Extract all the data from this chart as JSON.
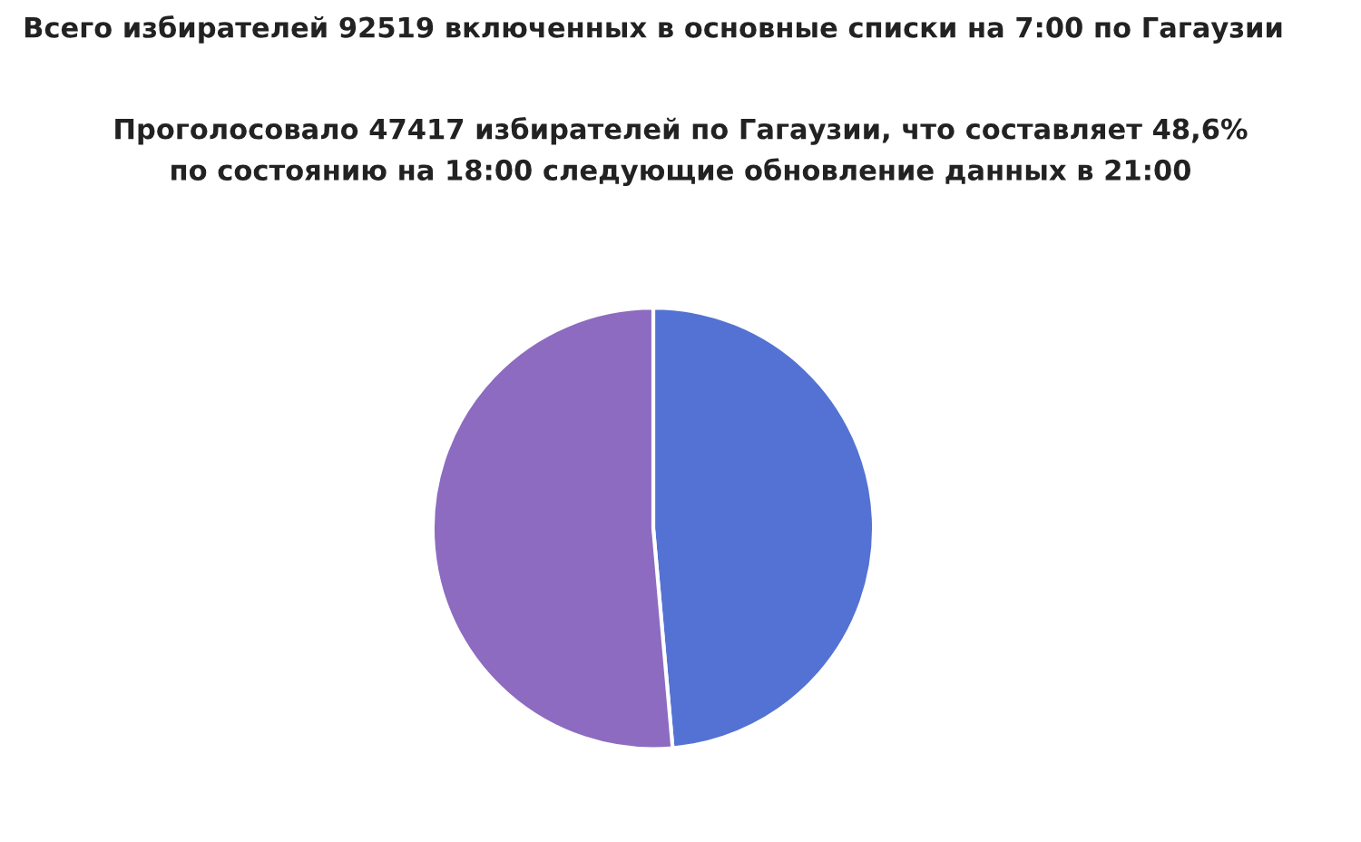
{
  "chart_data": {
    "type": "pie",
    "title": "Всего избирателей 92519 включенных в основные списки на 7:00 по Гагаузии",
    "subtitle": "Проголосовало 47417 избирателей по Гагаузии, что составляет 48,6%\nпо состоянию на 18:00 следующие обновление данных в 21:00",
    "categories": [
      null,
      null
    ],
    "values": [
      48.6,
      51.4
    ],
    "colors": [
      "#5472d3",
      "#8c6bc0"
    ],
    "legend": false
  }
}
